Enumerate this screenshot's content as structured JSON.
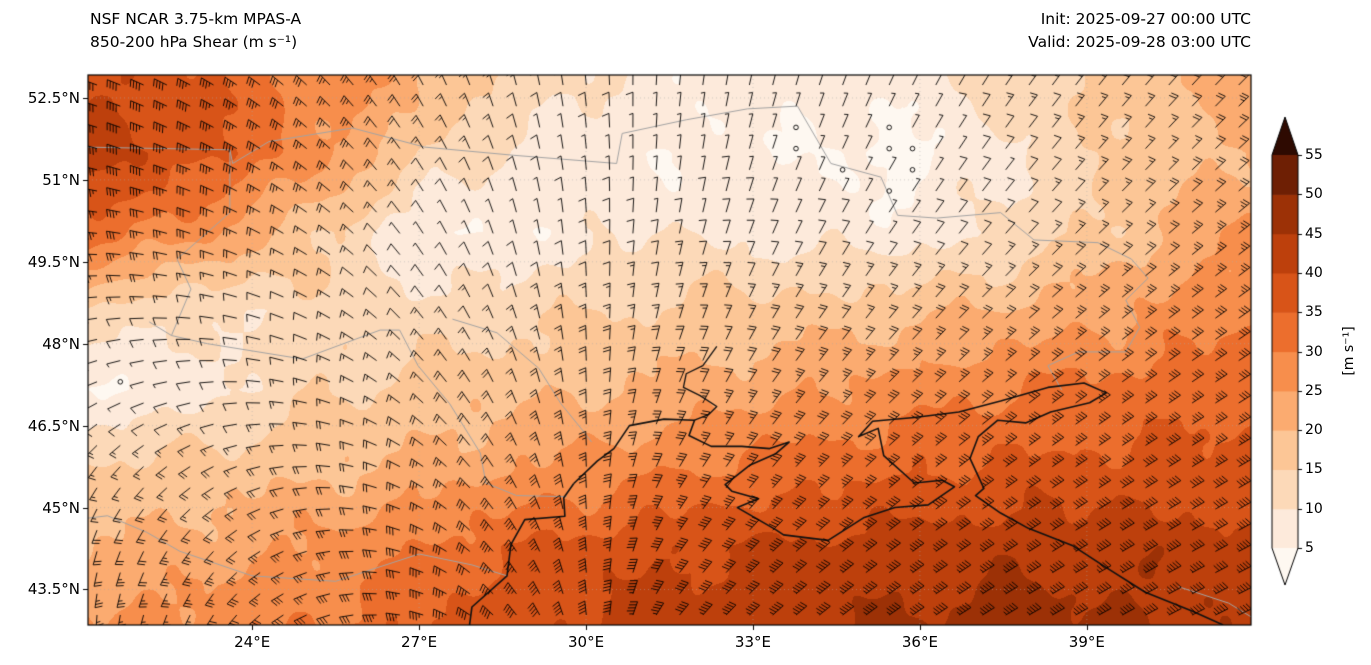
{
  "header": {
    "model_title": "NSF NCAR 3.75-km MPAS-A",
    "field_title": "850-200 hPa Shear (m s⁻¹)",
    "init_label": "Init: 2025-09-27 00:00 UTC",
    "valid_label": "Valid: 2025-09-28 03:00 UTC"
  },
  "axes": {
    "lon_ticks": [
      {
        "value": 24,
        "label": "24°E"
      },
      {
        "value": 27,
        "label": "27°E"
      },
      {
        "value": 30,
        "label": "30°E"
      },
      {
        "value": 33,
        "label": "33°E"
      },
      {
        "value": 36,
        "label": "36°E"
      },
      {
        "value": 39,
        "label": "39°E"
      }
    ],
    "lat_ticks": [
      {
        "value": 52.5,
        "label": "52.5°N"
      },
      {
        "value": 51,
        "label": "51°N"
      },
      {
        "value": 49.5,
        "label": "49.5°N"
      },
      {
        "value": 48,
        "label": "48°N"
      },
      {
        "value": 46.5,
        "label": "46.5°N"
      },
      {
        "value": 45,
        "label": "45°N"
      },
      {
        "value": 43.5,
        "label": "43.5°N"
      }
    ]
  },
  "colorbar": {
    "label": "[m s⁻¹]",
    "ticks": [
      5,
      10,
      15,
      20,
      25,
      30,
      35,
      40,
      45,
      50,
      55
    ],
    "band_colors": [
      "#fef8f1",
      "#fdeadb",
      "#fcd9b8",
      "#fcc696",
      "#fbab70",
      "#f78e4c",
      "#ec6e2d",
      "#d85418",
      "#bd400c",
      "#9c3106",
      "#6e1f04",
      "#2e0a01"
    ]
  },
  "chart_data": {
    "type": "heatmap",
    "subtype": "filled-contour weather map with wind barbs",
    "title": "850-200 hPa Shear (m s⁻¹)",
    "model": "NSF NCAR 3.75-km MPAS-A",
    "init_time": "2025-09-27 00:00 UTC",
    "valid_time": "2025-09-28 03:00 UTC",
    "units": "m s⁻¹",
    "levels": [
      5,
      10,
      15,
      20,
      25,
      30,
      35,
      40,
      45,
      50,
      55
    ],
    "extent": {
      "lon": [
        21.05,
        41.95
      ],
      "lat": [
        42.85,
        52.92
      ]
    },
    "shear_grid": {
      "note": "shear magnitude (m/s), 8 rows from lat 52.92N down to 42.85N, 11 cols from lon 21.05E to 41.95E",
      "values": [
        [
          40,
          36,
          28,
          20,
          12,
          8,
          6,
          7,
          14,
          18,
          22
        ],
        [
          42,
          37,
          26,
          14,
          7,
          5,
          6,
          3,
          10,
          16,
          20
        ],
        [
          33,
          26,
          16,
          4,
          7,
          10,
          8,
          7,
          11,
          18,
          26
        ],
        [
          14,
          10,
          13,
          12,
          14,
          16,
          17,
          18,
          21,
          25,
          29
        ],
        [
          4,
          8,
          14,
          17,
          19,
          21,
          24,
          27,
          30,
          32,
          34
        ],
        [
          16,
          17,
          19,
          22,
          26,
          29,
          32,
          34,
          36,
          37,
          37
        ],
        [
          20,
          22,
          26,
          31,
          36,
          39,
          41,
          42,
          43,
          43,
          42
        ],
        [
          26,
          28,
          30,
          36,
          40,
          43,
          44,
          46,
          47,
          46,
          44
        ]
      ]
    },
    "wind_dir_grid": [
      [
        290,
        300,
        315,
        335,
        350,
        365,
        375,
        385,
        395,
        400,
        405
      ],
      [
        285,
        295,
        310,
        330,
        350,
        365,
        380,
        390,
        398,
        403,
        408
      ],
      [
        275,
        290,
        305,
        330,
        352,
        370,
        385,
        395,
        402,
        408,
        412
      ],
      [
        262,
        278,
        298,
        325,
        350,
        375,
        392,
        400,
        408,
        412,
        415
      ],
      [
        245,
        262,
        288,
        318,
        348,
        382,
        398,
        406,
        412,
        415,
        418
      ],
      [
        215,
        240,
        272,
        308,
        345,
        390,
        402,
        410,
        415,
        418,
        420
      ],
      [
        195,
        220,
        258,
        298,
        340,
        395,
        408,
        414,
        418,
        420,
        422
      ],
      [
        180,
        208,
        248,
        290,
        335,
        400,
        410,
        416,
        420,
        422,
        425
      ]
    ],
    "coastlines": [
      [
        [
          29.78,
          45.44
        ],
        [
          29.6,
          45.18
        ],
        [
          29.62,
          44.84
        ],
        [
          28.9,
          44.78
        ],
        [
          28.65,
          44.32
        ],
        [
          28.58,
          43.75
        ],
        [
          27.95,
          43.18
        ],
        [
          27.9,
          42.8
        ]
      ],
      [
        [
          29.78,
          45.44
        ],
        [
          30.2,
          45.85
        ],
        [
          30.5,
          46.08
        ],
        [
          30.78,
          46.5
        ],
        [
          31.4,
          46.62
        ],
        [
          31.95,
          46.6
        ],
        [
          31.85,
          46.32
        ],
        [
          32.25,
          46.12
        ],
        [
          32.8,
          46.12
        ],
        [
          33.3,
          46.08
        ],
        [
          33.65,
          46.2
        ],
        [
          33.4,
          45.98
        ],
        [
          32.95,
          45.78
        ],
        [
          32.5,
          45.42
        ],
        [
          32.62,
          45.3
        ],
        [
          33.1,
          45.16
        ],
        [
          32.72,
          45.0
        ],
        [
          33.4,
          44.6
        ],
        [
          33.55,
          44.5
        ],
        [
          34.35,
          44.4
        ],
        [
          35.0,
          44.82
        ],
        [
          35.55,
          45.0
        ],
        [
          36.15,
          45.05
        ],
        [
          36.62,
          45.38
        ],
        [
          36.4,
          45.5
        ],
        [
          35.9,
          45.45
        ],
        [
          35.35,
          45.95
        ],
        [
          35.25,
          46.45
        ],
        [
          34.9,
          46.3
        ],
        [
          35.15,
          46.58
        ],
        [
          35.9,
          46.65
        ],
        [
          36.7,
          46.75
        ],
        [
          37.45,
          46.95
        ],
        [
          38.3,
          47.2
        ],
        [
          38.95,
          47.28
        ],
        [
          39.35,
          47.1
        ],
        [
          39.05,
          46.92
        ],
        [
          38.35,
          46.75
        ],
        [
          37.9,
          46.55
        ],
        [
          37.4,
          46.6
        ],
        [
          37.05,
          46.3
        ],
        [
          36.9,
          45.9
        ],
        [
          37.15,
          45.35
        ],
        [
          37.0,
          45.22
        ],
        [
          37.45,
          44.9
        ],
        [
          37.95,
          44.62
        ],
        [
          38.75,
          44.3
        ],
        [
          39.35,
          43.9
        ],
        [
          40.05,
          43.45
        ],
        [
          40.9,
          43.1
        ],
        [
          41.45,
          42.85
        ]
      ],
      [
        [
          32.35,
          47.95
        ],
        [
          32.1,
          47.6
        ],
        [
          31.8,
          47.45
        ],
        [
          31.75,
          47.2
        ],
        [
          32.05,
          47.05
        ],
        [
          32.35,
          46.85
        ],
        [
          32.2,
          46.7
        ],
        [
          31.95,
          46.6
        ]
      ]
    ],
    "borders": [
      [
        [
          21.0,
          51.6
        ],
        [
          23.6,
          51.55
        ],
        [
          23.65,
          51.3
        ],
        [
          24.3,
          51.7
        ],
        [
          25.8,
          51.95
        ],
        [
          27.1,
          51.6
        ],
        [
          28.7,
          51.45
        ],
        [
          30.55,
          51.3
        ],
        [
          30.65,
          51.85
        ],
        [
          31.8,
          52.1
        ],
        [
          32.9,
          52.3
        ],
        [
          33.8,
          52.35
        ]
      ],
      [
        [
          33.8,
          52.35
        ],
        [
          34.4,
          51.3
        ],
        [
          35.3,
          51.05
        ],
        [
          35.6,
          50.35
        ],
        [
          36.3,
          50.3
        ],
        [
          37.45,
          50.4
        ],
        [
          38.05,
          49.9
        ],
        [
          39.2,
          49.85
        ],
        [
          39.8,
          49.55
        ],
        [
          40.1,
          49.2
        ],
        [
          39.7,
          48.8
        ],
        [
          39.95,
          48.3
        ],
        [
          39.7,
          47.85
        ],
        [
          38.85,
          47.85
        ],
        [
          38.3,
          47.6
        ],
        [
          38.55,
          47.15
        ]
      ],
      [
        [
          23.6,
          51.55
        ],
        [
          23.6,
          50.4
        ],
        [
          22.65,
          49.55
        ],
        [
          22.9,
          49.0
        ],
        [
          22.55,
          48.15
        ],
        [
          22.15,
          48.4
        ]
      ],
      [
        [
          22.55,
          48.15
        ],
        [
          23.2,
          48.0
        ],
        [
          24.9,
          47.72
        ],
        [
          26.3,
          48.25
        ],
        [
          26.65,
          48.25
        ]
      ],
      [
        [
          26.65,
          48.25
        ],
        [
          26.98,
          47.6
        ],
        [
          27.55,
          46.9
        ],
        [
          28.1,
          46.0
        ],
        [
          28.2,
          45.45
        ],
        [
          28.75,
          45.22
        ],
        [
          29.65,
          45.2
        ]
      ],
      [
        [
          27.6,
          48.45
        ],
        [
          28.4,
          48.2
        ],
        [
          29.15,
          47.55
        ],
        [
          29.55,
          46.9
        ],
        [
          29.95,
          46.4
        ],
        [
          30.1,
          46.2
        ]
      ],
      [
        [
          22.7,
          44.2
        ],
        [
          24.0,
          43.75
        ],
        [
          25.5,
          43.65
        ],
        [
          27.0,
          44.15
        ],
        [
          27.95,
          43.95
        ],
        [
          28.58,
          43.75
        ]
      ],
      [
        [
          21.0,
          44.8
        ],
        [
          21.4,
          44.85
        ],
        [
          22.1,
          44.55
        ],
        [
          22.7,
          44.2
        ]
      ],
      [
        [
          40.65,
          43.55
        ],
        [
          41.55,
          43.25
        ],
        [
          41.95,
          43.0
        ]
      ]
    ]
  }
}
